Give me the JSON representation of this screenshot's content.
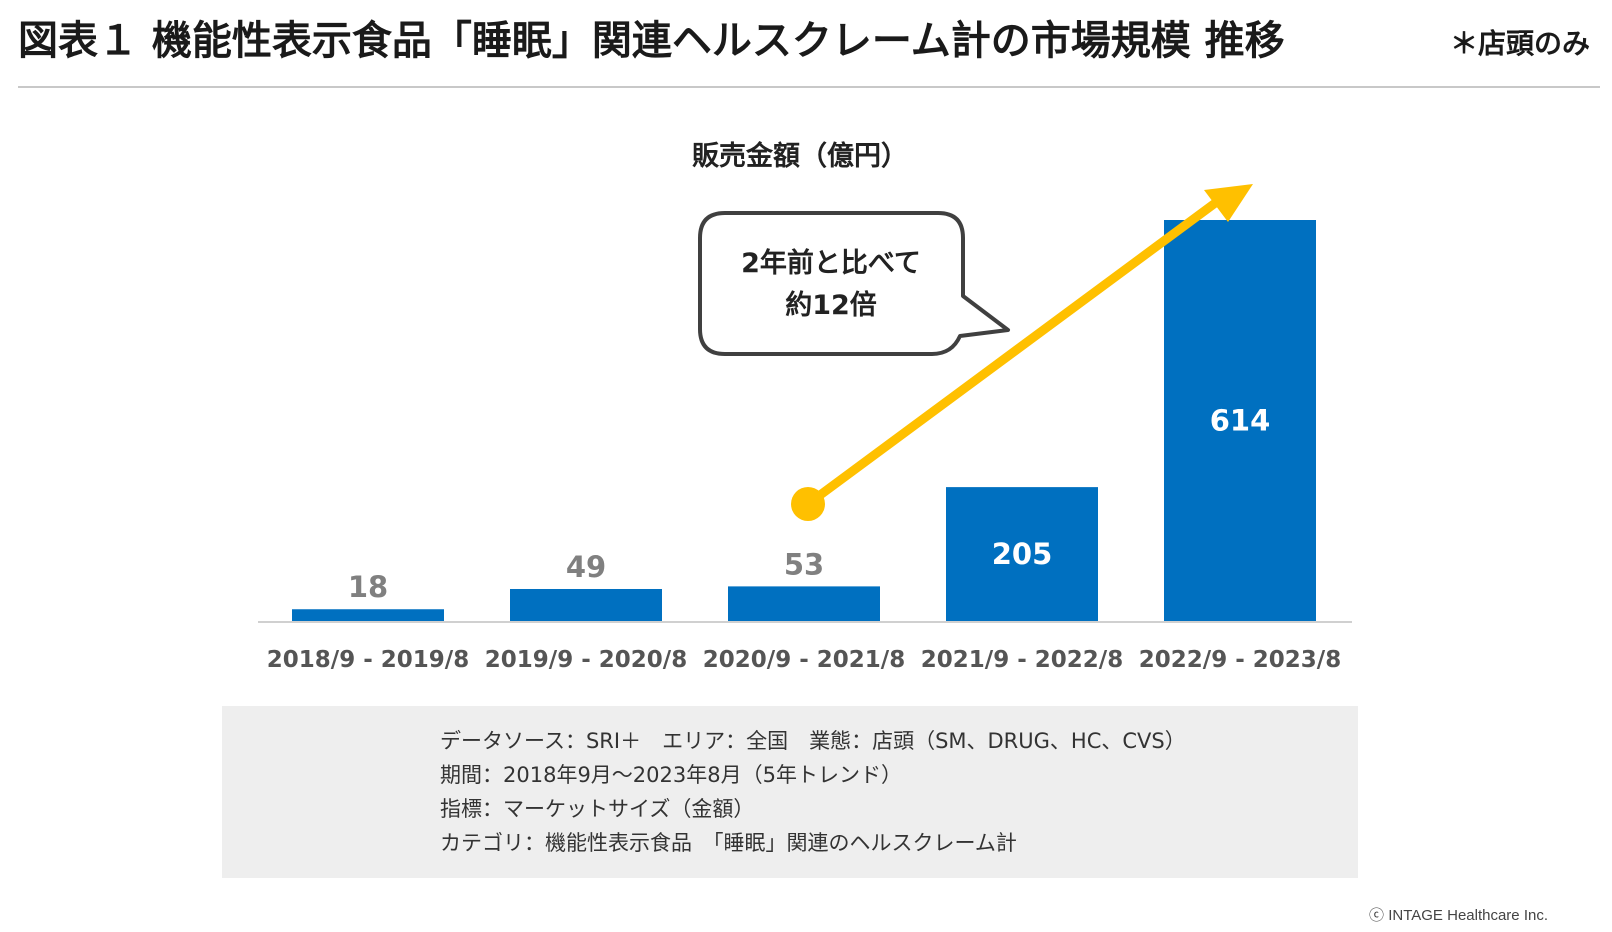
{
  "header": {
    "title": "図表１ 機能性表示食品「睡眠」関連ヘルスクレーム計の市場規模 推移",
    "note": "＊店頭のみ"
  },
  "callout": {
    "line1": "2年前と比べて",
    "line2": "約12倍"
  },
  "colors": {
    "bar": "#0070c0",
    "arrow": "#ffc000",
    "label_outside": "#808080",
    "label_inside": "#ffffff"
  },
  "chart_data": {
    "type": "bar",
    "title": "販売金額（億円）",
    "categories": [
      "2018/9 - 2019/8",
      "2019/9 - 2020/8",
      "2020/9 - 2021/8",
      "2021/9 - 2022/8",
      "2022/9 - 2023/8"
    ],
    "values": [
      18,
      49,
      53,
      205,
      614
    ],
    "ylim": [
      0,
      614
    ],
    "grid": false,
    "legend": "none",
    "annotation": "2年前と比べて 約12倍"
  },
  "source": {
    "lines": [
      "データソース：SRI＋　エリア：全国　業態：店頭（SM、DRUG、HC、CVS）",
      "期間：2018年9月～2023年8月（5年トレンド）",
      "指標：マーケットサイズ（金額）",
      "カテゴリ：機能性表示食品　「睡眠」関連のヘルスクレーム計"
    ]
  },
  "copyright": "ⓒ INTAGE Healthcare Inc."
}
